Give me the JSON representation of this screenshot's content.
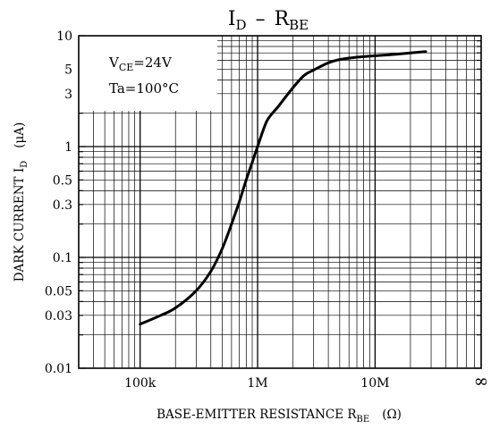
{
  "chart_data": {
    "type": "line",
    "title_main": "I",
    "title_sub1": "D",
    "title_dash": "–",
    "title_main2": "R",
    "title_sub2": "BE",
    "xlabel_main": "BASE-EMITTER RESISTANCE  R",
    "xlabel_sub": "BE",
    "xlabel_unit": "(Ω)",
    "ylabel_main": "DARK CURRENT  I",
    "ylabel_sub": "D",
    "ylabel_unit": "(μA)",
    "x_scale": "log",
    "y_scale": "log",
    "xlim": [
      30000,
      80000000
    ],
    "ylim": [
      0.01,
      10
    ],
    "x_tick_labels": [
      {
        "value": 100000,
        "label": "100k"
      },
      {
        "value": 1000000,
        "label": "1M"
      },
      {
        "value": 10000000,
        "label": "10M"
      }
    ],
    "x_end_label": "∞",
    "y_tick_labels": [
      {
        "value": 10,
        "label": "10"
      },
      {
        "value": 5,
        "label": "5"
      },
      {
        "value": 3,
        "label": "3"
      },
      {
        "value": 1,
        "label": "1"
      },
      {
        "value": 0.5,
        "label": "0.5"
      },
      {
        "value": 0.3,
        "label": "0.3"
      },
      {
        "value": 0.1,
        "label": "0.1"
      },
      {
        "value": 0.05,
        "label": "0.05"
      },
      {
        "value": 0.03,
        "label": "0.03"
      },
      {
        "value": 0.01,
        "label": "0.01"
      }
    ],
    "conditions": [
      {
        "main": "V",
        "sub": "CE",
        "rest": "=24V"
      },
      {
        "main": "Ta",
        "sub": "",
        "rest": "=100°C"
      }
    ],
    "grid": true,
    "series": [
      {
        "x": [
          100000,
          150000,
          200000,
          300000,
          400000,
          500000,
          600000,
          700000,
          800000,
          900000,
          1000000,
          1200000,
          1500000,
          2000000,
          2500000,
          3000000,
          4000000,
          5000000,
          7000000,
          10000000,
          15000000,
          20000000,
          27000000
        ],
        "y": [
          0.025,
          0.03,
          0.035,
          0.05,
          0.075,
          0.12,
          0.2,
          0.32,
          0.5,
          0.72,
          1.0,
          1.7,
          2.3,
          3.4,
          4.4,
          4.9,
          5.7,
          6.1,
          6.4,
          6.6,
          6.8,
          7.0,
          7.2
        ],
        "color": "#000000"
      }
    ]
  }
}
